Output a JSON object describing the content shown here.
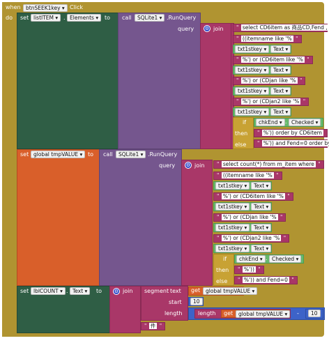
{
  "event": {
    "when": "when",
    "component": "btnSEEK1key",
    "event_name": "Click",
    "do": "do"
  },
  "b1": {
    "set": "set",
    "target": "listITEM",
    "prop": "Elements",
    "to": "to",
    "call": "call",
    "db": "SQLite1",
    "method": ".RunQuery",
    "query": "query",
    "join": "join",
    "s1": "select CD6item as 商品CD,Fend ,",
    "s2": "((itemname like '%",
    "tb": "txt1stkey",
    "text": "Text",
    "s3": "%') or (CD6item like '%",
    "s4": "%') or (CDjan like '%",
    "s5": "%') or (CDjan2 like '%",
    "if": "if",
    "chk": "chkEnd",
    "checked": "Checked",
    "then": "then",
    "s6": "%')) order by CD6item",
    "else": "else",
    "s7": "%')) and Fend=0 order by"
  },
  "b2": {
    "set": "set",
    "target": "global tmpVALUE",
    "to": "to",
    "call": "call",
    "db": "SQLite1",
    "method": ".RunQuery",
    "query": "query",
    "join": "join",
    "s1": "select count(*) from m_item where",
    "s2": "((itemname like '%",
    "tb": "txt1stkey",
    "text": "Text",
    "s3": "%') or (CD6item like '%",
    "s4": "%') or (CDjan like '%",
    "s5": "%') or (CDjan2 like '%",
    "if": "if",
    "chk": "chkEnd",
    "checked": "Checked",
    "then": "then",
    "s6": "%'))",
    "else": "else",
    "s7": "%')) and Fend=0"
  },
  "b3": {
    "set": "set",
    "target": "lblCOUNT",
    "prop": "Text",
    "to": "to",
    "join": "join",
    "segment": "segment",
    "text": "text",
    "get": "get",
    "var": "global tmpVALUE",
    "start": "start",
    "start_val": "10",
    "length": "length",
    "length_fn": "length",
    "minus": "-",
    "num": "10",
    "s_last": "件"
  },
  "colors": {
    "event": "#b09431",
    "set": "#2f5e45",
    "call": "#75568e",
    "text": "#a93768",
    "var": "#d95f2a",
    "component": "#66b96c",
    "control": "#c8a234",
    "math": "#3d63c8"
  }
}
